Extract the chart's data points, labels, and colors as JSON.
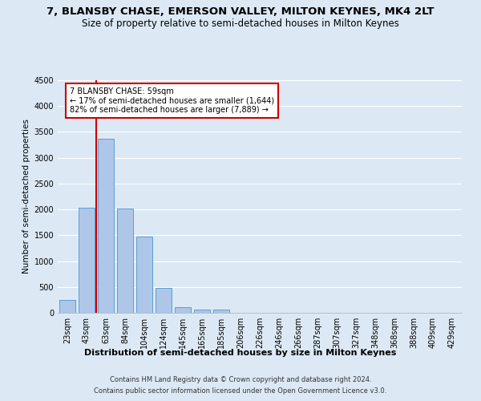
{
  "title": "7, BLANSBY CHASE, EMERSON VALLEY, MILTON KEYNES, MK4 2LT",
  "subtitle": "Size of property relative to semi-detached houses in Milton Keynes",
  "xlabel": "Distribution of semi-detached houses by size in Milton Keynes",
  "ylabel": "Number of semi-detached properties",
  "footer_line1": "Contains HM Land Registry data © Crown copyright and database right 2024.",
  "footer_line2": "Contains public sector information licensed under the Open Government Licence v3.0.",
  "bar_labels": [
    "23sqm",
    "43sqm",
    "63sqm",
    "84sqm",
    "104sqm",
    "124sqm",
    "145sqm",
    "165sqm",
    "185sqm",
    "206sqm",
    "226sqm",
    "246sqm",
    "266sqm",
    "287sqm",
    "307sqm",
    "327sqm",
    "348sqm",
    "368sqm",
    "388sqm",
    "409sqm",
    "429sqm"
  ],
  "bar_values": [
    250,
    2030,
    3370,
    2020,
    1470,
    480,
    110,
    65,
    55,
    0,
    0,
    0,
    0,
    0,
    0,
    0,
    0,
    0,
    0,
    0,
    0
  ],
  "bar_color": "#aec6e8",
  "bar_edgecolor": "#5a9fd4",
  "annotation_text": "7 BLANSBY CHASE: 59sqm\n← 17% of semi-detached houses are smaller (1,644)\n82% of semi-detached houses are larger (7,889) →",
  "annotation_box_facecolor": "#ffffff",
  "annotation_box_edgecolor": "#cc0000",
  "vline_color": "#cc0000",
  "ylim": [
    0,
    4500
  ],
  "yticks": [
    0,
    500,
    1000,
    1500,
    2000,
    2500,
    3000,
    3500,
    4000,
    4500
  ],
  "bg_color": "#dce9f5",
  "plot_bg_color": "#dce9f5",
  "grid_color": "#ffffff",
  "title_fontsize": 9.5,
  "subtitle_fontsize": 8.5,
  "xlabel_fontsize": 8,
  "ylabel_fontsize": 7.5,
  "tick_fontsize": 7,
  "footer_fontsize": 6,
  "annot_fontsize": 7
}
